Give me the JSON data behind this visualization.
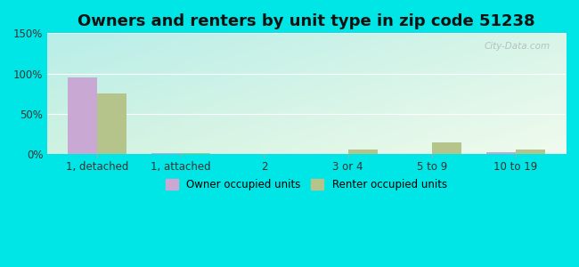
{
  "title": "Owners and renters by unit type in zip code 51238",
  "categories": [
    "1, detached",
    "1, attached",
    "2",
    "3 or 4",
    "5 to 9",
    "10 to 19"
  ],
  "owner_values": [
    95,
    1,
    0,
    0,
    0,
    2
  ],
  "renter_values": [
    75,
    1,
    0,
    6,
    15,
    6
  ],
  "owner_color": "#c9a8d4",
  "renter_color": "#b5c48a",
  "ylim": [
    0,
    150
  ],
  "yticks": [
    0,
    50,
    100,
    150
  ],
  "ytick_labels": [
    "0%",
    "50%",
    "100%",
    "150%"
  ],
  "bg_top_left": "#b8eeea",
  "bg_bottom_right": "#eef8e8",
  "outer_bg": "#00e5e5",
  "bar_width": 0.35,
  "title_fontsize": 13,
  "watermark": "City-Data.com"
}
